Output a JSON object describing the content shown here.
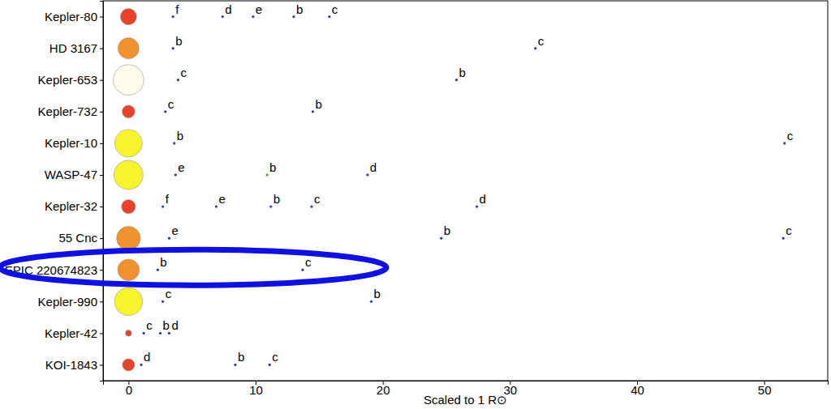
{
  "chart_data": {
    "type": "scatter",
    "xlabel": "Scaled to 1 R⊙",
    "xlim": [
      -2,
      55
    ],
    "xticks": [
      0,
      10,
      20,
      30,
      40,
      50
    ],
    "categories": [
      "Kepler-80",
      "HD 3167",
      "Kepler-653",
      "Kepler-732",
      "Kepler-10",
      "WASP-47",
      "Kepler-32",
      "55 Cnc",
      "EPIC 220674823",
      "Kepler-990",
      "Kepler-42",
      "KOI-1843"
    ],
    "systems": [
      {
        "star_radius": 0.64,
        "star_color": "#e8412c",
        "planets": [
          {
            "label": "f",
            "x": 3.5,
            "color": "#2b3f9e"
          },
          {
            "label": "d",
            "x": 7.4,
            "color": "#2b3f9e"
          },
          {
            "label": "e",
            "x": 9.8,
            "color": "#2b3f9e"
          },
          {
            "label": "b",
            "x": 13.0,
            "color": "#2b3f9e"
          },
          {
            "label": "c",
            "x": 15.8,
            "color": "#2b3f9e"
          }
        ]
      },
      {
        "star_radius": 0.83,
        "star_color": "#f0922e",
        "planets": [
          {
            "label": "b",
            "x": 3.5,
            "color": "#2b3f9e"
          },
          {
            "label": "c",
            "x": 32.0,
            "color": "#2b3f9e"
          }
        ]
      },
      {
        "star_radius": 1.2,
        "star_color": "#fffbeb",
        "planets": [
          {
            "label": "c",
            "x": 3.9,
            "color": "#2b3f9e"
          },
          {
            "label": "b",
            "x": 25.8,
            "color": "#2b3f9e"
          }
        ]
      },
      {
        "star_radius": 0.5,
        "star_color": "#e8412c",
        "planets": [
          {
            "label": "c",
            "x": 2.9,
            "color": "#2b3f9e"
          },
          {
            "label": "b",
            "x": 14.5,
            "color": "#2b3f9e"
          }
        ]
      },
      {
        "star_radius": 1.08,
        "star_color": "#f8f32b",
        "planets": [
          {
            "label": "b",
            "x": 3.6,
            "color": "#2b3f9e"
          },
          {
            "label": "c",
            "x": 51.6,
            "color": "#2b3f9e"
          }
        ]
      },
      {
        "star_radius": 1.15,
        "star_color": "#f8f32b",
        "planets": [
          {
            "label": "e",
            "x": 3.7,
            "color": "#2b3f9e"
          },
          {
            "label": "b",
            "x": 10.9,
            "color": "#5aa02c"
          },
          {
            "label": "d",
            "x": 18.8,
            "color": "#2b3f9e"
          }
        ]
      },
      {
        "star_radius": 0.55,
        "star_color": "#e8412c",
        "planets": [
          {
            "label": "f",
            "x": 2.7,
            "color": "#2b3f9e"
          },
          {
            "label": "e",
            "x": 6.9,
            "color": "#2b3f9e"
          },
          {
            "label": "b",
            "x": 11.2,
            "color": "#2b3f9e"
          },
          {
            "label": "c",
            "x": 14.4,
            "color": "#2b3f9e"
          },
          {
            "label": "d",
            "x": 27.4,
            "color": "#2b3f9e"
          }
        ]
      },
      {
        "star_radius": 0.94,
        "star_color": "#f0922e",
        "planets": [
          {
            "label": "e",
            "x": 3.2,
            "color": "#2b3f9e"
          },
          {
            "label": "b",
            "x": 24.6,
            "color": "#2b3f9e"
          },
          {
            "label": "c",
            "x": 51.5,
            "color": "#2b3f9e"
          }
        ]
      },
      {
        "star_radius": 0.85,
        "star_color": "#f0922e",
        "highlighted": true,
        "planets": [
          {
            "label": "b",
            "x": 2.3,
            "color": "#2b3f9e"
          },
          {
            "label": "c",
            "x": 13.7,
            "color": "#2b3f9e"
          }
        ]
      },
      {
        "star_radius": 1.1,
        "star_color": "#f8f32b",
        "planets": [
          {
            "label": "c",
            "x": 2.7,
            "color": "#2b3f9e"
          },
          {
            "label": "b",
            "x": 19.1,
            "color": "#2b3f9e"
          }
        ]
      },
      {
        "star_radius": 0.24,
        "star_color": "#e8412c",
        "planets": [
          {
            "label": "c",
            "x": 1.2,
            "color": "#2b3f9e"
          },
          {
            "label": "b",
            "x": 2.5,
            "color": "#2b3f9e"
          },
          {
            "label": "d",
            "x": 3.2,
            "color": "#2b3f9e"
          }
        ]
      },
      {
        "star_radius": 0.48,
        "star_color": "#e8412c",
        "planets": [
          {
            "label": "d",
            "x": 1.0,
            "color": "#2b3f9e"
          },
          {
            "label": "b",
            "x": 8.4,
            "color": "#2b3f9e"
          },
          {
            "label": "c",
            "x": 11.1,
            "color": "#2b3f9e"
          }
        ]
      }
    ]
  }
}
